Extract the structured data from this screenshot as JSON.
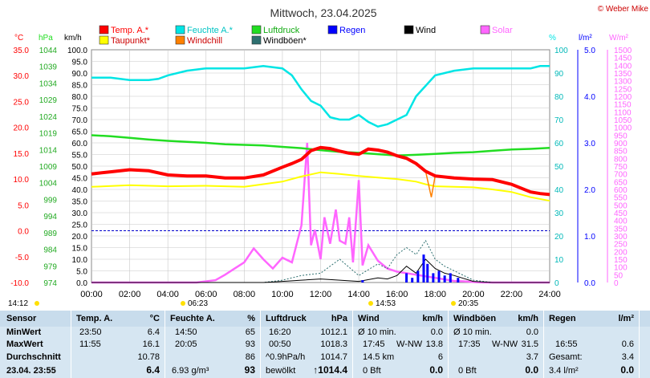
{
  "header": {
    "title": "Mittwoch, 23.04.2025",
    "copyright": "© Weber Mike"
  },
  "colors": {
    "temp": "#ff0000",
    "humidity": "#00e5e5",
    "pressure": "#22dd22",
    "rain": "#0000ff",
    "wind": "#000000",
    "solar": "#ff66ff",
    "dewpoint": "#ffff00",
    "windchill": "#ff8000",
    "gust": "#2e7070",
    "grid": "#c8c8c8",
    "zero_line": "#0000cc"
  },
  "chart_data": {
    "type": "line",
    "legend": [
      {
        "key": "temp",
        "label": "Temp. A.*"
      },
      {
        "key": "humidity",
        "label": "Feuchte A.*"
      },
      {
        "key": "pressure",
        "label": "Luftdruck"
      },
      {
        "key": "rain",
        "label": "Regen"
      },
      {
        "key": "wind",
        "label": "Wind"
      },
      {
        "key": "solar",
        "label": "Solar"
      },
      {
        "key": "dewpoint",
        "label": "Taupunkt*"
      },
      {
        "key": "windchill",
        "label": "Windchill"
      },
      {
        "key": "gust",
        "label": "Windböen*"
      }
    ],
    "axis_units": {
      "temp": "°C",
      "pressure": "hPa",
      "wind": "km/h",
      "humidity": "%",
      "rain": "l/m²",
      "solar": "W/m²"
    },
    "axes": {
      "temp": [
        35.0,
        30.0,
        25.0,
        20.0,
        15.0,
        10.0,
        5.0,
        0.0,
        -5.0,
        -10.0
      ],
      "pressure": [
        1044,
        1039,
        1034,
        1029,
        1024,
        1019,
        1014,
        1009,
        1004,
        999,
        994,
        989,
        984,
        979,
        974
      ],
      "wind": [
        100.0,
        95.0,
        90.0,
        85.0,
        80.0,
        75.0,
        70.0,
        65.0,
        60.0,
        55.0,
        50.0,
        45.0,
        40.0,
        35.0,
        30.0,
        25.0,
        20.0,
        15.0,
        10.0,
        5.0,
        0.0
      ],
      "humidity": [
        100,
        90,
        80,
        70,
        60,
        50,
        40,
        30,
        20,
        10,
        0
      ],
      "rain": [
        "5.0",
        "4.0",
        "3.0",
        "2.0",
        "1.0",
        "0.0"
      ],
      "solar": [
        1500,
        1450,
        1400,
        1350,
        1300,
        1250,
        1200,
        1150,
        1100,
        1050,
        1000,
        950,
        900,
        850,
        800,
        750,
        700,
        650,
        600,
        550,
        500,
        450,
        400,
        350,
        300,
        250,
        200,
        150,
        100,
        50,
        0
      ]
    },
    "x_ticks": [
      "00:00",
      "02:00",
      "04:00",
      "06:00",
      "08:00",
      "10:00",
      "12:00",
      "14:00",
      "16:00",
      "18:00",
      "20:00",
      "22:00",
      "24:00"
    ],
    "x_range": [
      0,
      24
    ],
    "events": [
      {
        "label": "14:12",
        "type": "moonrise"
      },
      {
        "label": "06:23",
        "type": "sunrise"
      },
      {
        "label": "14:53",
        "type": "moonset"
      },
      {
        "label": "20:35",
        "type": "sunset"
      }
    ],
    "series": [
      {
        "name": "Temp. A.*",
        "key": "temp",
        "unit": "°C",
        "x": [
          0,
          1,
          2,
          3,
          4,
          5,
          6,
          7,
          8,
          9,
          10,
          10.5,
          11,
          11.5,
          12,
          12.5,
          13,
          13.5,
          14,
          14.5,
          15,
          15.5,
          16,
          16.5,
          17,
          17.5,
          18,
          19,
          20,
          21,
          22,
          23,
          23.5,
          24
        ],
        "y": [
          11.0,
          11.4,
          11.8,
          11.6,
          10.8,
          10.6,
          10.6,
          10.2,
          10.2,
          10.8,
          12.3,
          13.0,
          13.8,
          15.5,
          16.1,
          15.9,
          15.4,
          15.0,
          14.8,
          15.8,
          15.6,
          15.2,
          14.5,
          14.0,
          13.0,
          11.5,
          10.6,
          10.2,
          10.0,
          9.9,
          9.0,
          7.5,
          7.2,
          7.0
        ]
      },
      {
        "name": "Taupunkt*",
        "key": "dewpoint",
        "unit": "°C",
        "x": [
          0,
          2,
          4,
          6,
          8,
          10,
          11,
          12,
          13,
          14,
          15,
          16,
          17,
          17.5,
          18,
          19,
          20,
          21,
          22,
          23,
          24
        ],
        "y": [
          8.5,
          8.8,
          8.6,
          8.7,
          8.5,
          9.5,
          10.5,
          11.3,
          11.0,
          10.6,
          10.3,
          10.0,
          9.5,
          9.0,
          8.6,
          8.5,
          8.4,
          8.0,
          7.5,
          6.5,
          5.8
        ]
      },
      {
        "name": "Windchill",
        "key": "windchill",
        "unit": "°C",
        "x": [
          16.5,
          17,
          17.5,
          17.8,
          18,
          19
        ],
        "y": [
          14.0,
          13.0,
          11.5,
          6.5,
          10.6,
          10.2
        ]
      },
      {
        "name": "Feuchte A.*",
        "key": "humidity",
        "unit": "%",
        "x": [
          0,
          1,
          1.5,
          2,
          3,
          3.5,
          4,
          5,
          6,
          7,
          8,
          9,
          10,
          10.5,
          11,
          11.5,
          12,
          12.5,
          13,
          13.5,
          14,
          14.5,
          15,
          15.5,
          16,
          16.5,
          17,
          18,
          19,
          20,
          21,
          22,
          23,
          23.5,
          24
        ],
        "y": [
          88,
          88,
          87.5,
          87,
          87,
          87.5,
          89,
          91,
          92,
          92,
          92,
          93,
          92,
          89,
          83,
          78,
          76,
          71,
          70,
          70,
          72,
          69,
          67,
          68,
          70,
          72,
          80,
          89,
          91,
          92,
          92,
          92,
          92,
          93,
          93
        ]
      },
      {
        "name": "Luftdruck",
        "key": "pressure",
        "unit": "hPa",
        "x": [
          0,
          1,
          2,
          3,
          4,
          5,
          6,
          7,
          8,
          9,
          10,
          11,
          12,
          13,
          14,
          15,
          16,
          17,
          18,
          19,
          20,
          21,
          22,
          23,
          24
        ],
        "y": [
          1018.3,
          1018.0,
          1017.5,
          1017.0,
          1016.6,
          1016.3,
          1016.0,
          1015.6,
          1015.4,
          1015.2,
          1014.8,
          1014.4,
          1013.8,
          1013.3,
          1013.0,
          1012.6,
          1012.2,
          1012.4,
          1012.7,
          1013.0,
          1013.2,
          1013.6,
          1014.0,
          1014.2,
          1014.5
        ]
      },
      {
        "name": "Solar",
        "key": "solar",
        "unit": "W/m²",
        "x": [
          0,
          5.5,
          6.5,
          7,
          7.5,
          8,
          8.5,
          9,
          9.5,
          10,
          10.5,
          11,
          11.3,
          11.5,
          11.7,
          12,
          12.2,
          12.5,
          12.8,
          13,
          13.3,
          13.5,
          13.7,
          14,
          14.2,
          14.5,
          15,
          15.5,
          16,
          16.5,
          17,
          17.5,
          18,
          18.5,
          19,
          19.5,
          20,
          20.5,
          24
        ],
        "y": [
          0,
          0,
          15,
          50,
          90,
          130,
          220,
          150,
          90,
          160,
          130,
          370,
          900,
          240,
          340,
          150,
          420,
          250,
          470,
          270,
          250,
          420,
          130,
          660,
          110,
          240,
          140,
          90,
          70,
          60,
          50,
          40,
          30,
          20,
          10,
          8,
          3,
          0,
          0
        ]
      },
      {
        "name": "Wind",
        "key": "wind",
        "unit": "km/h",
        "x": [
          0,
          9,
          10,
          11,
          12,
          13,
          14,
          15,
          15.5,
          16,
          16.5,
          17,
          17.5,
          18,
          18.5,
          19,
          20,
          21,
          24
        ],
        "y": [
          0,
          0,
          0.5,
          1,
          1.5,
          1,
          0.5,
          2,
          1.5,
          3,
          7,
          4,
          10,
          6,
          4,
          3,
          0.5,
          0,
          0
        ]
      },
      {
        "name": "Windböen*",
        "key": "gust",
        "unit": "km/h",
        "x": [
          0,
          9,
          10,
          11,
          12,
          13,
          14,
          15,
          15.5,
          16,
          16.5,
          17,
          17.5,
          18,
          18.5,
          19,
          20,
          21,
          24
        ],
        "y": [
          0,
          0,
          1,
          3,
          4,
          10,
          3,
          8,
          6,
          12,
          15,
          12,
          18,
          10,
          7,
          5,
          1,
          0,
          0
        ]
      },
      {
        "name": "Regen",
        "key": "rain",
        "unit": "l/m²",
        "x": [
          14.2,
          16.5,
          16.8,
          17.1,
          17.4,
          17.6,
          17.9,
          18.2,
          18.5,
          18.8,
          19.2
        ],
        "y": [
          0.05,
          0.2,
          0.1,
          0.25,
          0.6,
          0.4,
          0.2,
          0.25,
          0.15,
          0.2,
          0.1
        ]
      }
    ]
  },
  "stats": {
    "rows_labels": [
      "Sensor",
      "MinWert",
      "MaxWert",
      "Durchschnitt",
      "23.04.  23:55"
    ],
    "temp": {
      "title": "Temp. A.",
      "unit": "°C",
      "min_t": "23:50",
      "min_v": "6.4",
      "max_t": "11:55",
      "max_v": "16.1",
      "avg": "10.78",
      "cur": "6.4"
    },
    "humidity": {
      "title": "Feuchte A.",
      "unit": "%",
      "min_t": "14:50",
      "min_v": "65",
      "max_t": "20:05",
      "max_v": "93",
      "avg": "86",
      "cur_abs": "6.93 g/m³",
      "cur": "93"
    },
    "pressure": {
      "title": "Luftdruck",
      "unit": "hPa",
      "min_t": "16:20",
      "min_v": "1012.1",
      "max_t": "00:50",
      "max_v": "1018.3",
      "trend_l": "^0.9hPa/h",
      "trend_v": "1014.7",
      "cond": "bewölkt",
      "cur": "↑1014.4"
    },
    "wind": {
      "title": "Wind",
      "unit": "km/h",
      "r1_l": "Ø 10 min.",
      "r1_v": "0.0",
      "r2_t": "17:45",
      "r2_d": "W-NW",
      "r2_v": "13.8",
      "r3_l": "14.5 km",
      "r3_v": "6",
      "r4_l": "0 Bft",
      "cur": "0.0"
    },
    "gust": {
      "title": "Windböen",
      "unit": "km/h",
      "r1_l": "Ø 10 min.",
      "r1_v": "0.0",
      "r2_t": "17:35",
      "r2_d": "W-NW",
      "r2_v": "31.5",
      "r3_v": "3.7",
      "r4_l": "0 Bft",
      "cur": "0.0"
    },
    "rain": {
      "title": "Regen",
      "unit": "l/m²",
      "r2_t": "16:55",
      "r2_v": "0.6",
      "r3_l": "Gesamt:",
      "r3_v": "3.4",
      "cur": "3.4 l/m²",
      "cur2": "0.0"
    }
  }
}
